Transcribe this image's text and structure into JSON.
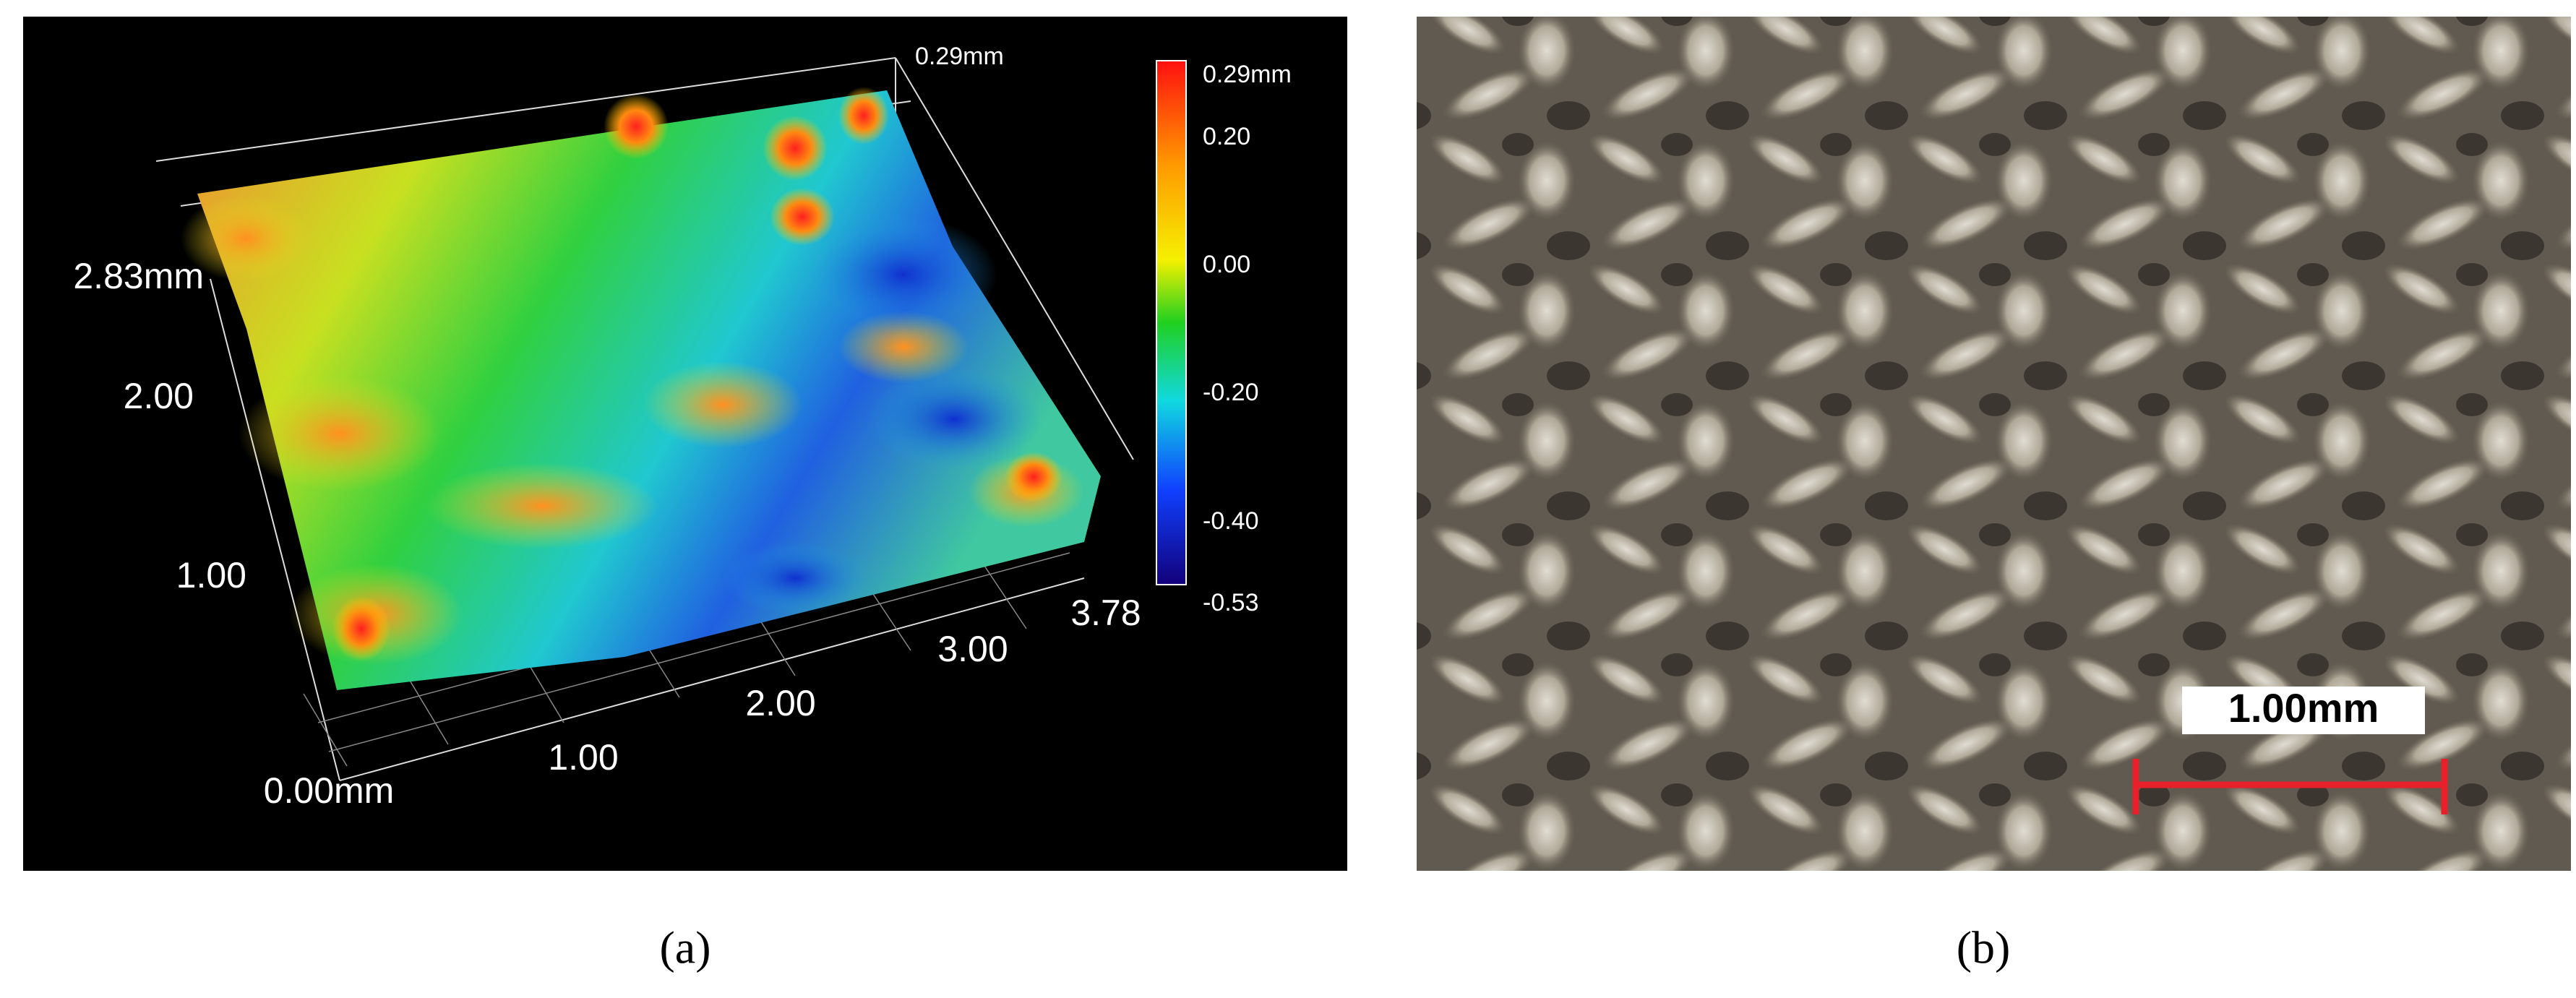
{
  "panel_a": {
    "top_label": "0.29mm",
    "colorbar_labels": [
      "0.29mm",
      "0.20",
      "0.00",
      "-0.20",
      "-0.40",
      "-0.53"
    ],
    "y_axis_labels": [
      "2.83mm",
      "2.00",
      "1.00"
    ],
    "x_axis_labels": [
      "0.00mm",
      "1.00",
      "2.00",
      "3.00",
      "3.78"
    ],
    "caption": "(a)"
  },
  "panel_b": {
    "scale_bar_label": "1.00mm",
    "caption": "(b)"
  }
}
